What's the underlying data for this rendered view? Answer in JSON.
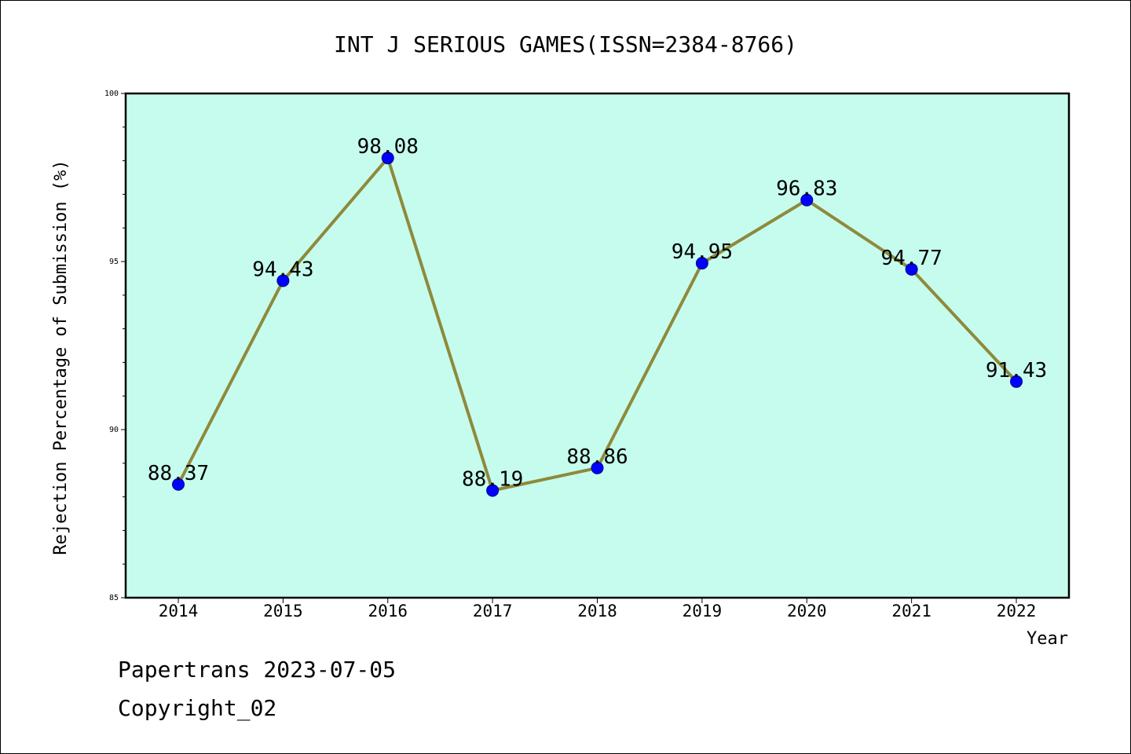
{
  "colors": {
    "plot_background": "#c6fcee",
    "line": "#8e8a3b",
    "marker": "#0000ff",
    "marker_edge": "#00008b",
    "axis": "#000000",
    "text": "#000000"
  },
  "chart_data": {
    "type": "line",
    "title": "INT J SERIOUS GAMES(ISSN=2384-8766)",
    "xlabel": "Year",
    "ylabel": "Rejection Percentage of Submission (%)",
    "categories": [
      "2014",
      "2015",
      "2016",
      "2017",
      "2018",
      "2019",
      "2020",
      "2021",
      "2022"
    ],
    "series": [
      {
        "values": [
          88.37,
          94.43,
          98.08,
          88.19,
          88.86,
          94.95,
          96.83,
          94.77,
          91.43
        ],
        "labels": [
          "88.37",
          "94.43",
          "98.08",
          "88.19",
          "88.86",
          "94.95",
          "96.83",
          "94.77",
          "91.43"
        ]
      }
    ],
    "ylim": [
      85,
      100
    ],
    "y_major_ticks": [
      85,
      90,
      95,
      100
    ],
    "y_tick_labels": [
      "85",
      "90",
      "95",
      "100"
    ],
    "y_minor_step": 1,
    "grid": false,
    "legend": "none"
  },
  "footer": {
    "line1": "Papertrans 2023-07-05",
    "line2": "Copyright_02"
  }
}
